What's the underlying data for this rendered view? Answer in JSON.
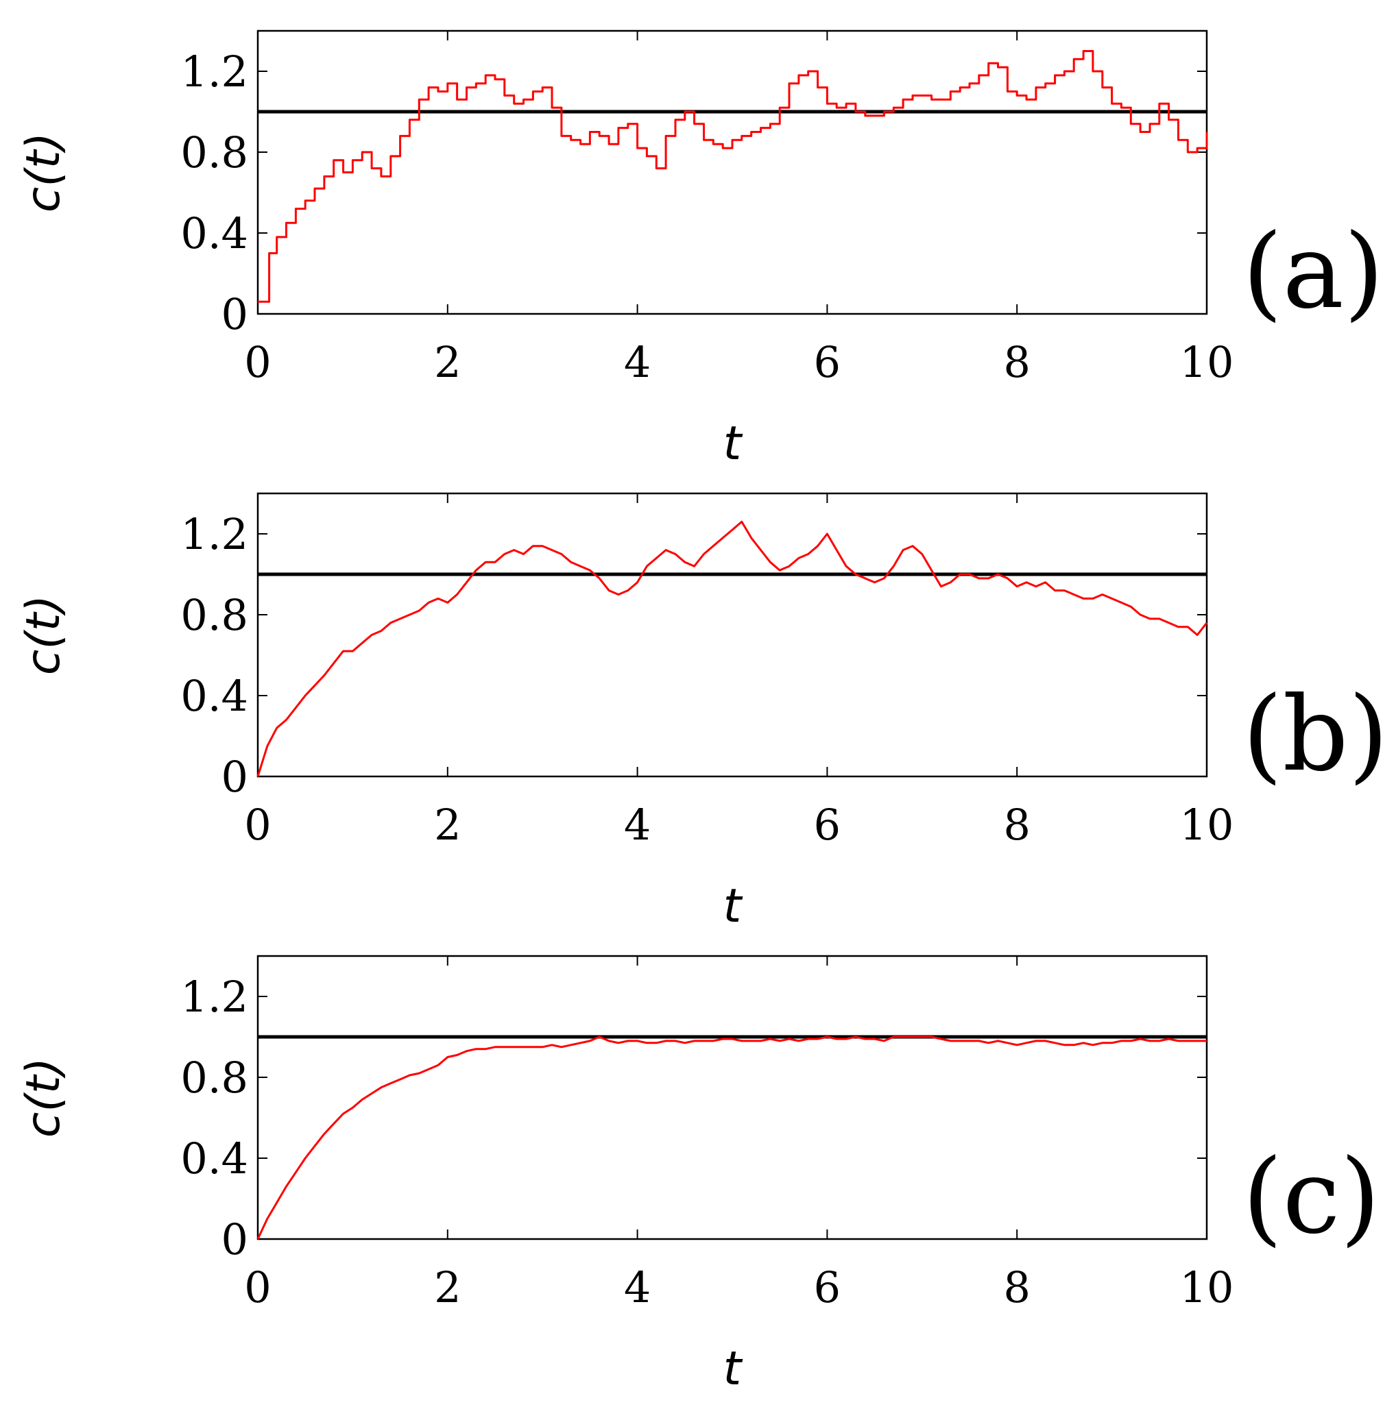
{
  "colors": {
    "series": "#ff0000",
    "reference": "#000000",
    "frame": "#000000"
  },
  "chart_data": [
    {
      "type": "line",
      "panel_label": "(a)",
      "xlabel": "t",
      "ylabel": "c(t)",
      "xlim": [
        0,
        10
      ],
      "ylim": [
        0,
        1.4
      ],
      "xticks": [
        "0",
        "2",
        "4",
        "6",
        "8",
        "10"
      ],
      "yticks": [
        "0",
        "0.4",
        "0.8",
        "1.2"
      ],
      "grid": false,
      "reference_line": 1.0,
      "series": [
        {
          "step": true,
          "x": [
            0,
            0.12,
            0.2,
            0.3,
            0.4,
            0.5,
            0.6,
            0.7,
            0.8,
            0.9,
            1.0,
            1.1,
            1.2,
            1.3,
            1.4,
            1.5,
            1.6,
            1.7,
            1.8,
            1.9,
            2.0,
            2.1,
            2.2,
            2.3,
            2.4,
            2.5,
            2.6,
            2.7,
            2.8,
            2.9,
            3.0,
            3.1,
            3.2,
            3.3,
            3.4,
            3.5,
            3.6,
            3.7,
            3.8,
            3.9,
            4.0,
            4.1,
            4.2,
            4.3,
            4.4,
            4.5,
            4.6,
            4.7,
            4.8,
            4.9,
            5.0,
            5.1,
            5.2,
            5.3,
            5.4,
            5.5,
            5.6,
            5.7,
            5.8,
            5.9,
            6.0,
            6.1,
            6.2,
            6.3,
            6.4,
            6.5,
            6.6,
            6.7,
            6.8,
            6.9,
            7.0,
            7.1,
            7.2,
            7.3,
            7.4,
            7.5,
            7.6,
            7.7,
            7.8,
            7.9,
            8.0,
            8.1,
            8.2,
            8.3,
            8.4,
            8.5,
            8.6,
            8.7,
            8.8,
            8.9,
            9.0,
            9.1,
            9.2,
            9.3,
            9.4,
            9.5,
            9.6,
            9.7,
            9.8,
            9.9,
            10.0
          ],
          "y": [
            0.06,
            0.3,
            0.38,
            0.45,
            0.52,
            0.56,
            0.62,
            0.68,
            0.76,
            0.7,
            0.76,
            0.8,
            0.72,
            0.68,
            0.78,
            0.88,
            0.96,
            1.06,
            1.12,
            1.1,
            1.14,
            1.06,
            1.12,
            1.14,
            1.18,
            1.16,
            1.08,
            1.04,
            1.06,
            1.1,
            1.12,
            1.02,
            0.88,
            0.86,
            0.84,
            0.9,
            0.88,
            0.84,
            0.92,
            0.94,
            0.82,
            0.78,
            0.72,
            0.88,
            0.96,
            1.0,
            0.94,
            0.86,
            0.84,
            0.82,
            0.86,
            0.88,
            0.9,
            0.92,
            0.94,
            1.02,
            1.14,
            1.18,
            1.2,
            1.12,
            1.04,
            1.02,
            1.04,
            1.0,
            0.98,
            0.98,
            1.0,
            1.02,
            1.06,
            1.08,
            1.08,
            1.06,
            1.06,
            1.1,
            1.12,
            1.14,
            1.18,
            1.24,
            1.22,
            1.1,
            1.08,
            1.06,
            1.12,
            1.14,
            1.18,
            1.2,
            1.26,
            1.3,
            1.2,
            1.12,
            1.04,
            1.02,
            0.94,
            0.9,
            0.94,
            1.04,
            0.96,
            0.86,
            0.8,
            0.82,
            0.9
          ]
        }
      ]
    },
    {
      "type": "line",
      "panel_label": "(b)",
      "xlabel": "t",
      "ylabel": "c(t)",
      "xlim": [
        0,
        10
      ],
      "ylim": [
        0,
        1.4
      ],
      "xticks": [
        "0",
        "2",
        "4",
        "6",
        "8",
        "10"
      ],
      "yticks": [
        "0",
        "0.4",
        "0.8",
        "1.2"
      ],
      "grid": false,
      "reference_line": 1.0,
      "series": [
        {
          "step": false,
          "x": [
            0,
            0.1,
            0.2,
            0.3,
            0.4,
            0.5,
            0.6,
            0.7,
            0.8,
            0.9,
            1.0,
            1.1,
            1.2,
            1.3,
            1.4,
            1.5,
            1.6,
            1.7,
            1.8,
            1.9,
            2.0,
            2.1,
            2.2,
            2.3,
            2.4,
            2.5,
            2.6,
            2.7,
            2.8,
            2.9,
            3.0,
            3.1,
            3.2,
            3.3,
            3.4,
            3.5,
            3.6,
            3.7,
            3.8,
            3.9,
            4.0,
            4.1,
            4.2,
            4.3,
            4.4,
            4.5,
            4.6,
            4.7,
            4.8,
            4.9,
            5.0,
            5.1,
            5.2,
            5.3,
            5.4,
            5.5,
            5.6,
            5.7,
            5.8,
            5.9,
            6.0,
            6.1,
            6.2,
            6.3,
            6.4,
            6.5,
            6.6,
            6.7,
            6.8,
            6.9,
            7.0,
            7.1,
            7.2,
            7.3,
            7.4,
            7.5,
            7.6,
            7.7,
            7.8,
            7.9,
            8.0,
            8.1,
            8.2,
            8.3,
            8.4,
            8.5,
            8.6,
            8.7,
            8.8,
            8.9,
            9.0,
            9.1,
            9.2,
            9.3,
            9.4,
            9.5,
            9.6,
            9.7,
            9.8,
            9.9,
            10.0
          ],
          "y": [
            0.0,
            0.15,
            0.24,
            0.28,
            0.34,
            0.4,
            0.45,
            0.5,
            0.56,
            0.62,
            0.62,
            0.66,
            0.7,
            0.72,
            0.76,
            0.78,
            0.8,
            0.82,
            0.86,
            0.88,
            0.86,
            0.9,
            0.96,
            1.02,
            1.06,
            1.06,
            1.1,
            1.12,
            1.1,
            1.14,
            1.14,
            1.12,
            1.1,
            1.06,
            1.04,
            1.02,
            0.98,
            0.92,
            0.9,
            0.92,
            0.96,
            1.04,
            1.08,
            1.12,
            1.1,
            1.06,
            1.04,
            1.1,
            1.14,
            1.18,
            1.22,
            1.26,
            1.18,
            1.12,
            1.06,
            1.02,
            1.04,
            1.08,
            1.1,
            1.14,
            1.2,
            1.12,
            1.04,
            1.0,
            0.98,
            0.96,
            0.98,
            1.04,
            1.12,
            1.14,
            1.1,
            1.02,
            0.94,
            0.96,
            1.0,
            1.0,
            0.98,
            0.98,
            1.0,
            0.98,
            0.94,
            0.96,
            0.94,
            0.96,
            0.92,
            0.92,
            0.9,
            0.88,
            0.88,
            0.9,
            0.88,
            0.86,
            0.84,
            0.8,
            0.78,
            0.78,
            0.76,
            0.74,
            0.74,
            0.7,
            0.76
          ]
        }
      ]
    },
    {
      "type": "line",
      "panel_label": "(c)",
      "xlabel": "t",
      "ylabel": "c(t)",
      "xlim": [
        0,
        10
      ],
      "ylim": [
        0,
        1.4
      ],
      "xticks": [
        "0",
        "2",
        "4",
        "6",
        "8",
        "10"
      ],
      "yticks": [
        "0",
        "0.4",
        "0.8",
        "1.2"
      ],
      "grid": false,
      "reference_line": 1.0,
      "series": [
        {
          "step": false,
          "x": [
            0,
            0.1,
            0.2,
            0.3,
            0.4,
            0.5,
            0.6,
            0.7,
            0.8,
            0.9,
            1.0,
            1.1,
            1.2,
            1.3,
            1.4,
            1.5,
            1.6,
            1.7,
            1.8,
            1.9,
            2.0,
            2.1,
            2.2,
            2.3,
            2.4,
            2.5,
            2.6,
            2.7,
            2.8,
            2.9,
            3.0,
            3.1,
            3.2,
            3.3,
            3.4,
            3.5,
            3.6,
            3.7,
            3.8,
            3.9,
            4.0,
            4.1,
            4.2,
            4.3,
            4.4,
            4.5,
            4.6,
            4.7,
            4.8,
            4.9,
            5.0,
            5.1,
            5.2,
            5.3,
            5.4,
            5.5,
            5.6,
            5.7,
            5.8,
            5.9,
            6.0,
            6.1,
            6.2,
            6.3,
            6.4,
            6.5,
            6.6,
            6.7,
            6.8,
            6.9,
            7.0,
            7.1,
            7.2,
            7.3,
            7.4,
            7.5,
            7.6,
            7.7,
            7.8,
            7.9,
            8.0,
            8.1,
            8.2,
            8.3,
            8.4,
            8.5,
            8.6,
            8.7,
            8.8,
            8.9,
            9.0,
            9.1,
            9.2,
            9.3,
            9.4,
            9.5,
            9.6,
            9.7,
            9.8,
            9.9,
            10.0
          ],
          "y": [
            0.0,
            0.1,
            0.18,
            0.26,
            0.33,
            0.4,
            0.46,
            0.52,
            0.57,
            0.62,
            0.65,
            0.69,
            0.72,
            0.75,
            0.77,
            0.79,
            0.81,
            0.82,
            0.84,
            0.86,
            0.9,
            0.91,
            0.93,
            0.94,
            0.94,
            0.95,
            0.95,
            0.95,
            0.95,
            0.95,
            0.95,
            0.96,
            0.95,
            0.96,
            0.97,
            0.98,
            1.0,
            0.98,
            0.97,
            0.98,
            0.98,
            0.97,
            0.97,
            0.98,
            0.98,
            0.97,
            0.98,
            0.98,
            0.98,
            0.99,
            0.99,
            0.98,
            0.98,
            0.98,
            0.99,
            0.98,
            0.99,
            0.98,
            0.99,
            0.99,
            1.0,
            0.99,
            0.99,
            1.0,
            0.99,
            0.99,
            0.98,
            1.0,
            1.0,
            1.0,
            1.0,
            1.0,
            0.99,
            0.98,
            0.98,
            0.98,
            0.98,
            0.97,
            0.98,
            0.97,
            0.96,
            0.97,
            0.98,
            0.98,
            0.97,
            0.96,
            0.96,
            0.97,
            0.96,
            0.97,
            0.97,
            0.98,
            0.98,
            0.99,
            0.98,
            0.98,
            0.99,
            0.98,
            0.98,
            0.98,
            0.98
          ]
        }
      ]
    }
  ]
}
